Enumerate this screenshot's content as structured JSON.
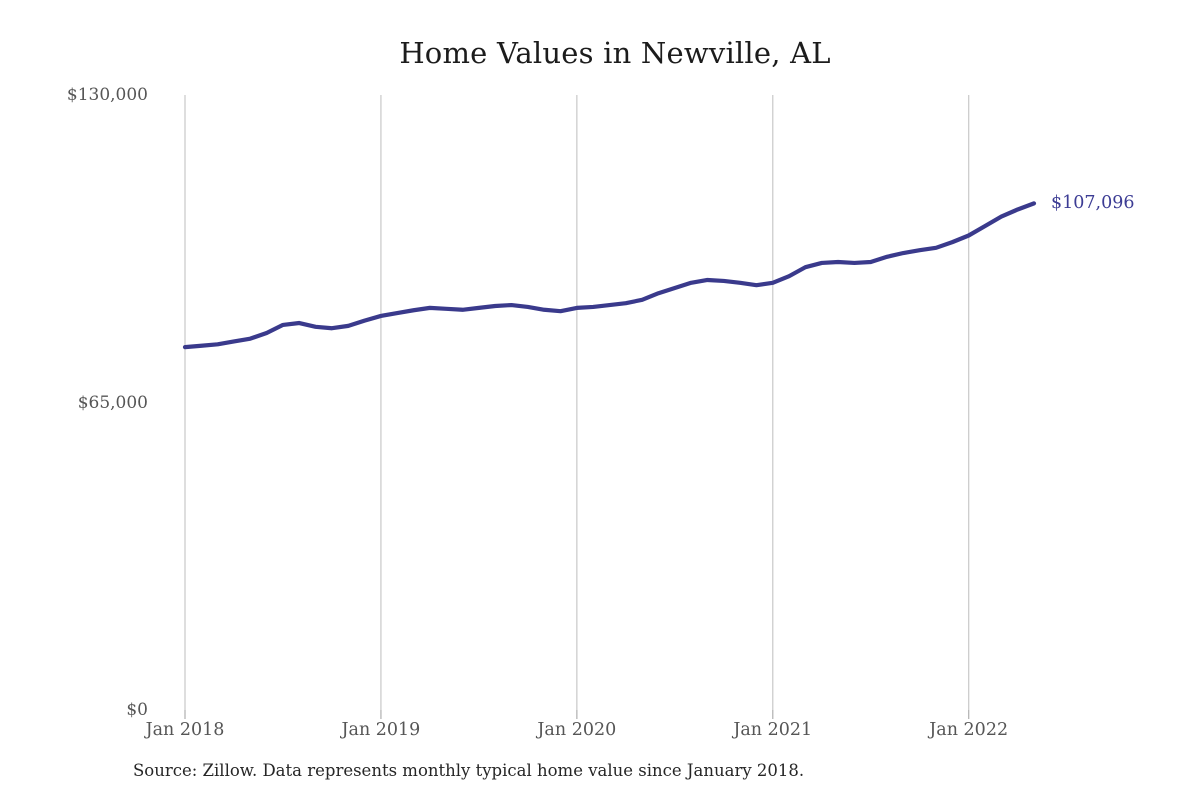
{
  "chart": {
    "title": "Home Values in Newville, AL",
    "end_value_label": "$107,096",
    "source_note": "Source: Zillow. Data represents monthly typical home value since January 2018."
  },
  "colors": {
    "background": "#ffffff",
    "line": "#3a3a8c",
    "grid": "#cccccc",
    "axis_tick": "#b5b5b5",
    "axis_text": "#565656",
    "title_text": "#1c1c1c",
    "source_text": "#262626",
    "end_label_text": "#3c3c94"
  },
  "chart_data": {
    "type": "line",
    "title": "Home Values in Newville, AL",
    "xlabel": "",
    "ylabel": "",
    "ylim": [
      0,
      130000
    ],
    "grid": "vertical-year-gridlines",
    "legend": "none",
    "x": [
      "Jan 2018",
      "Feb 2018",
      "Mar 2018",
      "Apr 2018",
      "May 2018",
      "Jun 2018",
      "Jul 2018",
      "Aug 2018",
      "Sep 2018",
      "Oct 2018",
      "Nov 2018",
      "Dec 2018",
      "Jan 2019",
      "Feb 2019",
      "Mar 2019",
      "Apr 2019",
      "May 2019",
      "Jun 2019",
      "Jul 2019",
      "Aug 2019",
      "Sep 2019",
      "Oct 2019",
      "Nov 2019",
      "Dec 2019",
      "Jan 2020",
      "Feb 2020",
      "Mar 2020",
      "Apr 2020",
      "May 2020",
      "Jun 2020",
      "Jul 2020",
      "Aug 2020",
      "Sep 2020",
      "Oct 2020",
      "Nov 2020",
      "Dec 2020",
      "Jan 2021",
      "Feb 2021",
      "Mar 2021",
      "Apr 2021",
      "May 2021",
      "Jun 2021",
      "Jul 2021",
      "Aug 2021",
      "Sep 2021",
      "Oct 2021",
      "Nov 2021",
      "Dec 2021",
      "Jan 2022",
      "Feb 2022",
      "Mar 2022",
      "Apr 2022",
      "May 2022"
    ],
    "series": [
      {
        "name": "Typical home value",
        "values": [
          76700,
          77000,
          77300,
          77900,
          78500,
          79700,
          81400,
          81800,
          81000,
          80700,
          81200,
          82300,
          83300,
          83900,
          84500,
          85000,
          84800,
          84600,
          85000,
          85400,
          85600,
          85200,
          84600,
          84300,
          85000,
          85200,
          85600,
          86000,
          86700,
          88100,
          89200,
          90300,
          90900,
          90700,
          90300,
          89800,
          90300,
          91700,
          93600,
          94500,
          94700,
          94500,
          94700,
          95800,
          96600,
          97200,
          97700,
          98900,
          100300,
          102300,
          104300,
          105800,
          107096
        ]
      }
    ],
    "y_ticks": [
      {
        "value": 0,
        "label": "$0"
      },
      {
        "value": 65000,
        "label": "$65,000"
      },
      {
        "value": 130000,
        "label": "$130,000"
      }
    ],
    "x_ticks": [
      {
        "index": 0,
        "label": "Jan 2018"
      },
      {
        "index": 12,
        "label": "Jan 2019"
      },
      {
        "index": 24,
        "label": "Jan 2020"
      },
      {
        "index": 36,
        "label": "Jan 2021"
      },
      {
        "index": 48,
        "label": "Jan 2022"
      }
    ],
    "end_annotation": {
      "label": "$107,096",
      "value": 107096
    }
  }
}
